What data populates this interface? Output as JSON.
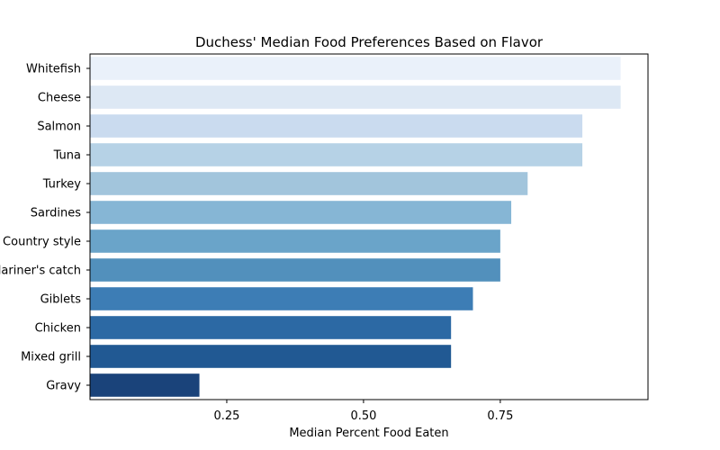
{
  "chart_data": {
    "type": "bar",
    "orientation": "horizontal",
    "title": "Duchess' Median Food Preferences Based on Flavor",
    "xlabel": "Median Percent Food Eaten",
    "ylabel": "",
    "xlim": [
      0.0,
      1.02
    ],
    "xticks": [
      0.25,
      0.5,
      0.75
    ],
    "xtick_labels": [
      "0.25",
      "0.50",
      "0.75"
    ],
    "grid": false,
    "categories": [
      "Whitefish",
      "Cheese",
      "Salmon",
      "Tuna",
      "Turkey",
      "Sardines",
      "Country style",
      "Mariner's catch",
      "Giblets",
      "Chicken",
      "Mixed grill",
      "Gravy"
    ],
    "values": [
      0.97,
      0.97,
      0.9,
      0.9,
      0.8,
      0.77,
      0.75,
      0.75,
      0.7,
      0.66,
      0.66,
      0.2
    ],
    "colors": [
      "#eaf1fa",
      "#dde8f4",
      "#cadbef",
      "#b6d2e6",
      "#a2c5dc",
      "#86b6d5",
      "#6aa4c9",
      "#5290bc",
      "#3d7db5",
      "#2c69a4",
      "#215993",
      "#1a437a"
    ]
  }
}
